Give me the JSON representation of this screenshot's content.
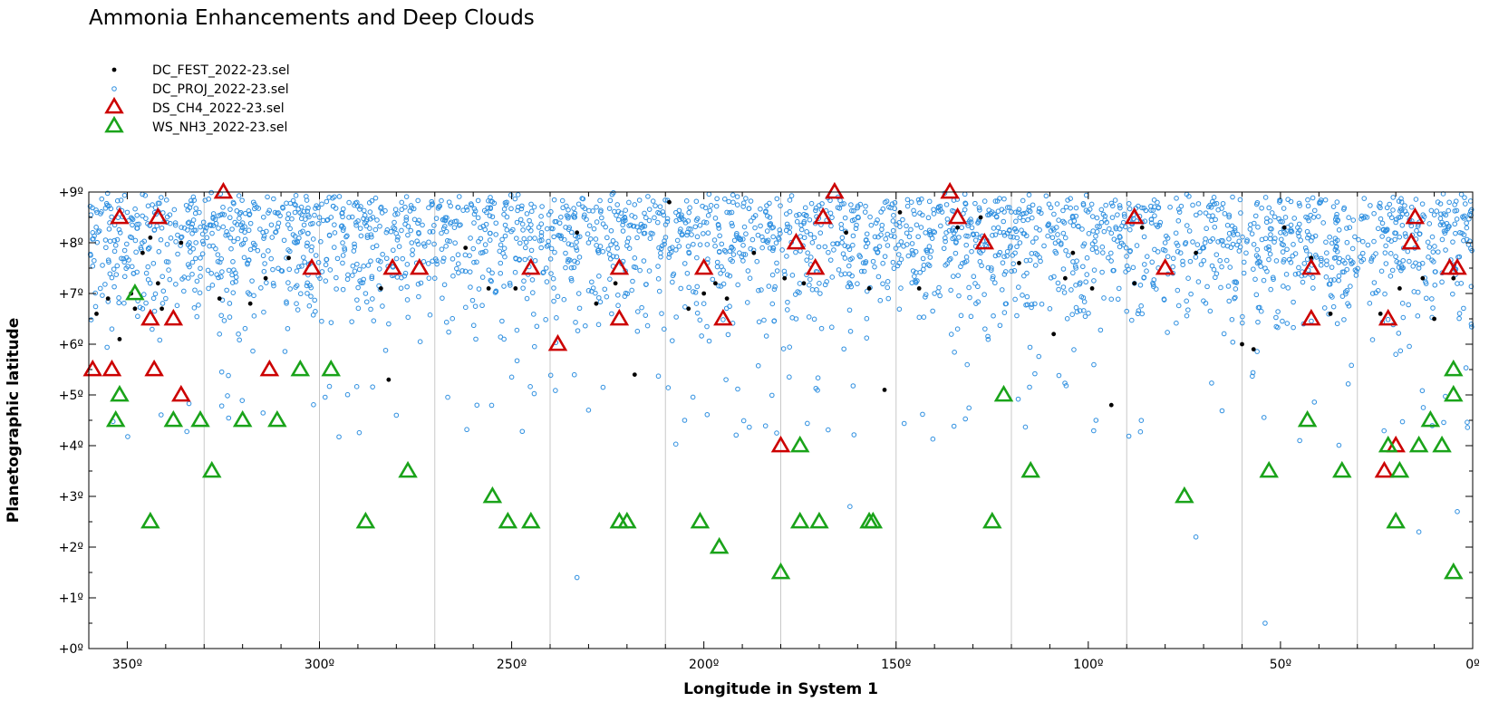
{
  "chart_data": {
    "type": "scatter",
    "title": "Ammonia Enhancements and Deep Clouds",
    "xlabel": "Longitude in System 1",
    "ylabel": "Planetographic latitude",
    "xlim": [
      360,
      0
    ],
    "ylim": [
      0,
      9
    ],
    "x_reversed": true,
    "x_ticks": [
      350,
      300,
      250,
      200,
      150,
      100,
      50,
      0
    ],
    "x_tick_labels": [
      "350º",
      "300º",
      "250º",
      "200º",
      "150º",
      "100º",
      "50º",
      "0º"
    ],
    "y_ticks": [
      0,
      1,
      2,
      3,
      4,
      5,
      6,
      7,
      8,
      9
    ],
    "y_tick_labels": [
      "+0º",
      "+1º",
      "+2º",
      "+3º",
      "+4º",
      "+5º",
      "+6º",
      "+7º",
      "+8º",
      "+9º"
    ],
    "vertical_grid_every": 30,
    "grid": true,
    "legend_position": "top-left",
    "series": [
      {
        "name": "DC_FEST_2022-23.sel",
        "marker": "filled-dot",
        "color": "#000000",
        "x": [
          358,
          355,
          352,
          349,
          348,
          346,
          344,
          342,
          341,
          336,
          326,
          318,
          314,
          308,
          282,
          284,
          262,
          256,
          249,
          233,
          228,
          223,
          218,
          209,
          204,
          200,
          197,
          194,
          187,
          179,
          174,
          163,
          157,
          153,
          149,
          144,
          134,
          128,
          118,
          109,
          106,
          104,
          99,
          94,
          88,
          86,
          72,
          60,
          57,
          49,
          42,
          37,
          24,
          19,
          13,
          10,
          5
        ],
        "y": [
          6.6,
          6.9,
          6.1,
          7.0,
          6.7,
          7.8,
          8.1,
          7.2,
          6.7,
          8.0,
          6.9,
          6.8,
          7.3,
          7.7,
          5.3,
          7.1,
          7.9,
          7.1,
          7.1,
          8.2,
          6.8,
          7.2,
          5.4,
          8.8,
          6.7,
          7.0,
          7.2,
          6.9,
          7.8,
          7.3,
          7.2,
          8.2,
          7.1,
          5.1,
          8.6,
          7.1,
          8.3,
          8.5,
          7.6,
          6.2,
          7.3,
          7.8,
          7.1,
          4.8,
          7.2,
          8.3,
          7.8,
          6.0,
          5.9,
          8.3,
          7.7,
          6.6,
          6.6,
          7.1,
          7.3,
          6.5,
          7.3
        ]
      },
      {
        "name": "DC_PROJ_2022-23.sel",
        "marker": "open-circle",
        "color": "#2E8FE0",
        "point_count": 2600,
        "x_range": [
          0,
          360
        ],
        "y_range": [
          0.5,
          9
        ],
        "x": [
          359,
          357,
          354,
          350,
          345,
          340,
          336,
          331,
          326,
          322,
          317,
          312,
          306,
          300,
          294,
          288,
          282,
          276,
          270,
          264,
          258,
          252,
          246,
          241,
          235,
          230,
          224,
          218,
          212,
          206,
          200,
          194,
          188,
          182,
          176,
          170,
          164,
          158,
          152,
          146,
          140,
          134,
          128,
          122,
          116,
          110,
          104,
          98,
          92,
          86,
          80,
          74,
          68,
          62,
          56,
          50,
          44,
          38,
          32,
          26,
          20,
          14,
          8,
          3,
          233,
          162,
          72,
          54,
          14,
          4,
          98,
          280,
          45,
          230,
          205
        ],
        "y": [
          8.2,
          7.1,
          6.3,
          8.6,
          7.4,
          6.9,
          8.1,
          7.7,
          6.2,
          8.4,
          7.9,
          7.2,
          6.8,
          8.5,
          7.6,
          7.0,
          6.4,
          8.0,
          7.3,
          8.7,
          7.8,
          6.1,
          6.9,
          7.5,
          8.3,
          8.0,
          6.6,
          7.7,
          8.4,
          7.1,
          6.8,
          8.6,
          7.3,
          7.9,
          6.5,
          7.2,
          8.1,
          7.6,
          6.9,
          8.8,
          7.0,
          6.3,
          7.8,
          8.2,
          7.4,
          6.7,
          8.5,
          7.9,
          7.1,
          6.6,
          8.0,
          7.3,
          8.7,
          6.9,
          7.6,
          8.2,
          6.4,
          7.8,
          8.3,
          7.0,
          5.8,
          7.5,
          8.4,
          7.2,
          1.4,
          2.8,
          2.2,
          0.5,
          2.3,
          2.7,
          4.5,
          4.6,
          4.1,
          4.7,
          4.5
        ]
      },
      {
        "name": "DS_CH4_2022-23.sel",
        "marker": "open-triangle",
        "color": "#CC0000",
        "x": [
          359,
          354,
          352,
          344,
          343,
          342,
          338,
          336,
          325,
          313,
          302,
          281,
          274,
          245,
          238,
          222,
          222,
          200,
          195,
          180,
          176,
          171,
          169,
          166,
          136,
          134,
          127,
          88,
          80,
          42,
          42,
          23,
          22,
          20,
          16,
          15,
          6,
          4
        ],
        "y": [
          5.5,
          5.5,
          8.5,
          6.5,
          5.5,
          8.5,
          6.5,
          5.0,
          9.0,
          5.5,
          7.5,
          7.5,
          7.5,
          7.5,
          6.0,
          7.5,
          6.5,
          7.5,
          6.5,
          4.0,
          8.0,
          7.5,
          8.5,
          9.0,
          9.0,
          8.5,
          8.0,
          8.5,
          7.5,
          7.5,
          6.5,
          3.5,
          6.5,
          4.0,
          8.0,
          8.5,
          7.5,
          7.5
        ]
      },
      {
        "name": "WS_NH3_2022-23.sel",
        "marker": "open-triangle",
        "color": "#1AA31A",
        "x": [
          353,
          352,
          348,
          344,
          338,
          331,
          328,
          320,
          311,
          305,
          297,
          288,
          277,
          255,
          251,
          245,
          222,
          220,
          201,
          196,
          180,
          175,
          175,
          170,
          157,
          156,
          125,
          122,
          115,
          75,
          53,
          43,
          34,
          22,
          20,
          19,
          14,
          11,
          8,
          5,
          5,
          5
        ],
        "y": [
          4.5,
          5.0,
          7.0,
          2.5,
          4.5,
          4.5,
          3.5,
          4.5,
          4.5,
          5.5,
          5.5,
          2.5,
          3.5,
          3.0,
          2.5,
          2.5,
          2.5,
          2.5,
          2.5,
          2.0,
          1.5,
          4.0,
          2.5,
          2.5,
          2.5,
          2.5,
          2.5,
          5.0,
          3.5,
          3.0,
          3.5,
          4.5,
          3.5,
          4.0,
          2.5,
          3.5,
          4.0,
          4.5,
          4.0,
          1.5,
          5.0,
          5.5
        ]
      }
    ]
  }
}
